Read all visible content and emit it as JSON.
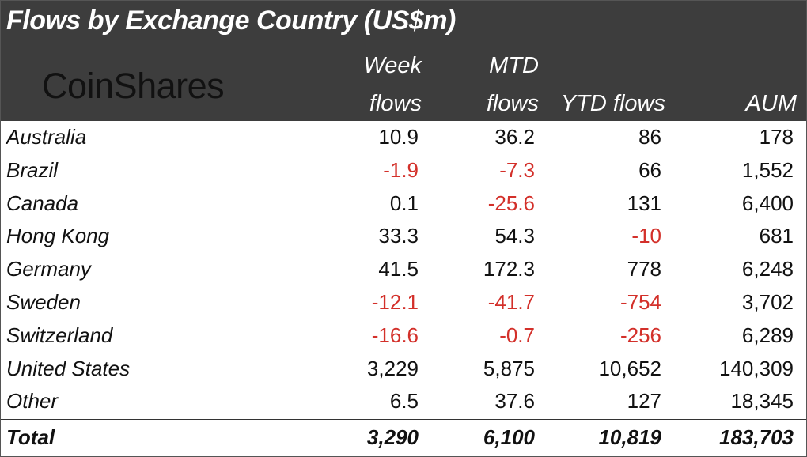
{
  "title": "Flows by Exchange Country (US$m)",
  "logo_text": "CoinShares",
  "colors": {
    "header_bg": "#3d3d3d",
    "negative": "#d3302a",
    "text": "#111111"
  },
  "headers": {
    "week_line1": "Week",
    "week_line2": "flows",
    "mtd_line1": "MTD",
    "mtd_line2": "flows",
    "ytd": "YTD flows",
    "aum": "AUM"
  },
  "chart_data": {
    "type": "table",
    "title": "Flows by Exchange Country (US$m)",
    "columns": [
      "",
      "Week flows",
      "MTD flows",
      "YTD flows",
      "AUM"
    ],
    "rows": [
      {
        "country": "Australia",
        "week": "10.9",
        "mtd": "36.2",
        "ytd": "86",
        "aum": "178"
      },
      {
        "country": "Brazil",
        "week": "-1.9",
        "mtd": "-7.3",
        "ytd": "66",
        "aum": "1,552"
      },
      {
        "country": "Canada",
        "week": "0.1",
        "mtd": "-25.6",
        "ytd": "131",
        "aum": "6,400"
      },
      {
        "country": "Hong Kong",
        "week": "33.3",
        "mtd": "54.3",
        "ytd": "-10",
        "aum": "681"
      },
      {
        "country": "Germany",
        "week": "41.5",
        "mtd": "172.3",
        "ytd": "778",
        "aum": "6,248"
      },
      {
        "country": "Sweden",
        "week": "-12.1",
        "mtd": "-41.7",
        "ytd": "-754",
        "aum": "3,702"
      },
      {
        "country": "Switzerland",
        "week": "-16.6",
        "mtd": "-0.7",
        "ytd": "-256",
        "aum": "6,289"
      },
      {
        "country": "United States",
        "week": "3,229",
        "mtd": "5,875",
        "ytd": "10,652",
        "aum": "140,309"
      },
      {
        "country": "Other",
        "week": "6.5",
        "mtd": "37.6",
        "ytd": "127",
        "aum": "18,345"
      }
    ],
    "total": {
      "country": "Total",
      "week": "3,290",
      "mtd": "6,100",
      "ytd": "10,819",
      "aum": "183,703"
    }
  }
}
